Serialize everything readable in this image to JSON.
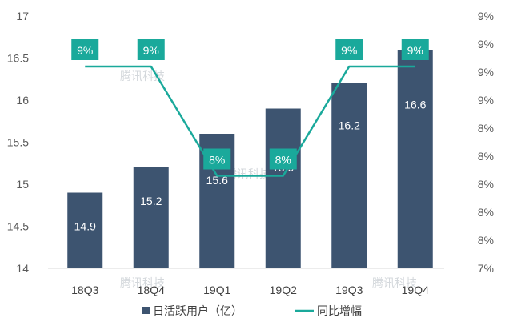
{
  "chart_data": {
    "type": "bar",
    "categories": [
      "18Q3",
      "18Q4",
      "19Q1",
      "19Q2",
      "19Q3",
      "19Q4"
    ],
    "series": [
      {
        "name": "日活跃用户（亿）",
        "type": "bar",
        "axis": "left",
        "values": [
          14.9,
          15.2,
          15.6,
          15.9,
          16.2,
          16.6
        ],
        "labels": [
          "14.9",
          "15.2",
          "15.6",
          "15.9",
          "16.2",
          "16.6"
        ],
        "color": "#3d5470"
      },
      {
        "name": "同比增幅",
        "type": "line",
        "axis": "right",
        "values": [
          9.4,
          9.4,
          8.1,
          8.1,
          9.4,
          9.4
        ],
        "labels": [
          "9%",
          "9%",
          "8%",
          "8%",
          "9%",
          "9%"
        ],
        "color": "#1aa99b"
      }
    ],
    "y_left": {
      "ylim": [
        14,
        17
      ],
      "ticks": [
        "14",
        "14.5",
        "15",
        "15.5",
        "16",
        "16.5",
        "17"
      ]
    },
    "y_right": {
      "ylim": [
        7,
        10
      ],
      "ticks": [
        "7%",
        "8%",
        "8%",
        "8%",
        "8%",
        "8%",
        "9%",
        "9%",
        "9%",
        "9%"
      ]
    },
    "legend_position": "bottom",
    "grid": false,
    "watermark": "腾讯科技"
  }
}
